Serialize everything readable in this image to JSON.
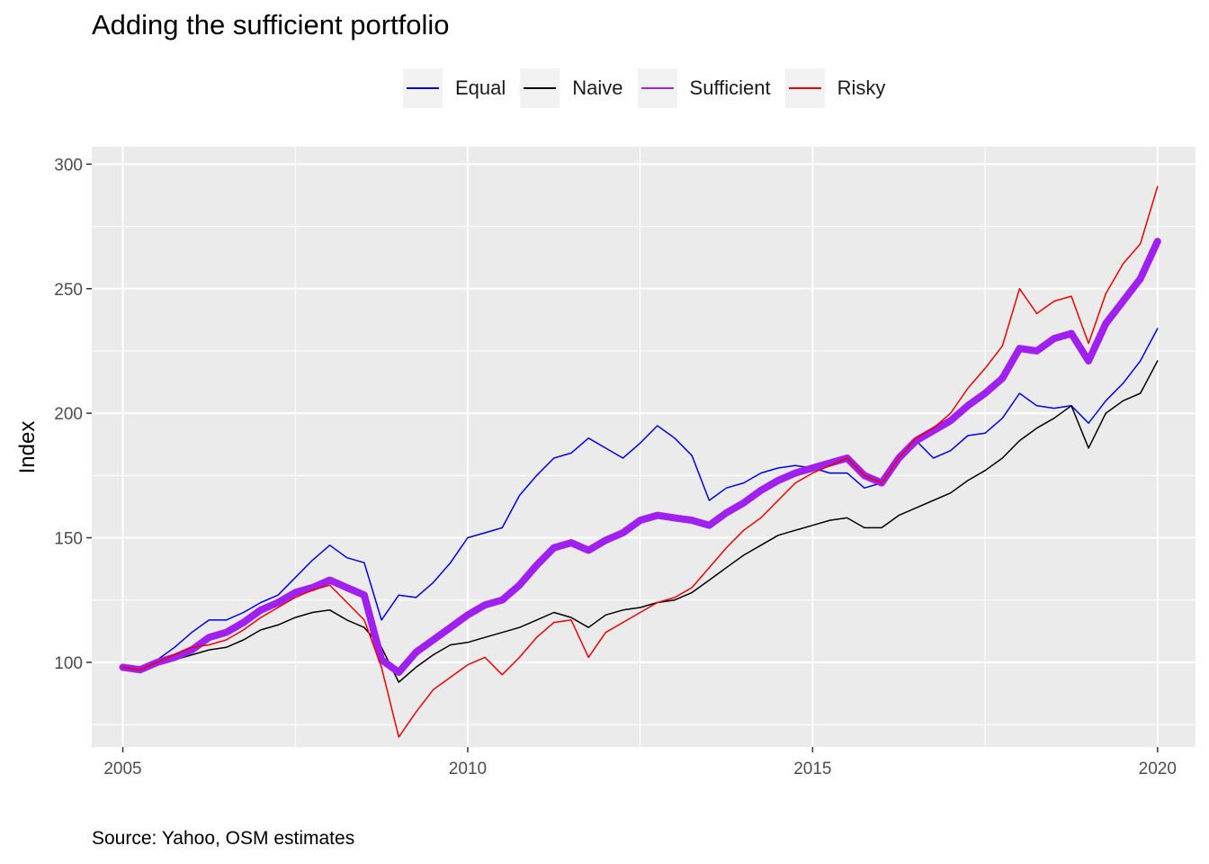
{
  "caption": "Source: Yahoo, OSM estimates",
  "chart_data": {
    "type": "line",
    "title": "Adding the sufficient portfolio",
    "xlabel": "",
    "ylabel": "Index",
    "xlim": [
      2004.55,
      2020.55
    ],
    "ylim": [
      66,
      307
    ],
    "x_ticks": [
      2005,
      2010,
      2015,
      2020
    ],
    "x_tick_labels": [
      "2005",
      "2010",
      "2015",
      "2020"
    ],
    "y_ticks": [
      100,
      150,
      200,
      250,
      300
    ],
    "y_tick_labels": [
      "100",
      "150",
      "200",
      "250",
      "300"
    ],
    "legend_position": "top",
    "series": [
      {
        "name": "Equal",
        "color": "#0000ee",
        "width": 1.5,
        "x": [
          2005.0,
          2005.25,
          2005.5,
          2005.75,
          2006.0,
          2006.25,
          2006.5,
          2006.75,
          2007.0,
          2007.25,
          2007.5,
          2007.75,
          2008.0,
          2008.25,
          2008.5,
          2008.75,
          2009.0,
          2009.25,
          2009.5,
          2009.75,
          2010.0,
          2010.25,
          2010.5,
          2010.75,
          2011.0,
          2011.25,
          2011.5,
          2011.75,
          2012.0,
          2012.25,
          2012.5,
          2012.75,
          2013.0,
          2013.25,
          2013.5,
          2013.75,
          2014.0,
          2014.25,
          2014.5,
          2014.75,
          2015.0,
          2015.25,
          2015.5,
          2015.75,
          2016.0,
          2016.25,
          2016.5,
          2016.75,
          2017.0,
          2017.25,
          2017.5,
          2017.75,
          2018.0,
          2018.25,
          2018.5,
          2018.75,
          2019.0,
          2019.25,
          2019.5,
          2019.75,
          2020.0
        ],
        "y": [
          98,
          98,
          101,
          106,
          112,
          117,
          117,
          120,
          124,
          127,
          134,
          141,
          147,
          142,
          140,
          117,
          127,
          126,
          132,
          140,
          150,
          152,
          154,
          167,
          175,
          182,
          184,
          190,
          186,
          182,
          188,
          195,
          190,
          183,
          165,
          170,
          172,
          176,
          178,
          179,
          178,
          176,
          176,
          170,
          172,
          183,
          189,
          182,
          185,
          191,
          192,
          198,
          208,
          203,
          202,
          203,
          196,
          205,
          212,
          221,
          234
        ]
      },
      {
        "name": "Naive",
        "color": "#000000",
        "width": 1.5,
        "x": [
          2005.0,
          2005.25,
          2005.5,
          2005.75,
          2006.0,
          2006.25,
          2006.5,
          2006.75,
          2007.0,
          2007.25,
          2007.5,
          2007.75,
          2008.0,
          2008.25,
          2008.5,
          2008.75,
          2009.0,
          2009.25,
          2009.5,
          2009.75,
          2010.0,
          2010.25,
          2010.5,
          2010.75,
          2011.0,
          2011.25,
          2011.5,
          2011.75,
          2012.0,
          2012.25,
          2012.5,
          2012.75,
          2013.0,
          2013.25,
          2013.5,
          2013.75,
          2014.0,
          2014.25,
          2014.5,
          2014.75,
          2015.0,
          2015.25,
          2015.5,
          2015.75,
          2016.0,
          2016.25,
          2016.5,
          2016.75,
          2017.0,
          2017.25,
          2017.5,
          2017.75,
          2018.0,
          2018.25,
          2018.5,
          2018.75,
          2019.0,
          2019.25,
          2019.5,
          2019.75,
          2020.0
        ],
        "y": [
          98,
          98,
          100,
          101,
          103,
          105,
          106,
          109,
          113,
          115,
          118,
          120,
          121,
          117,
          114,
          106,
          92,
          98,
          103,
          107,
          108,
          110,
          112,
          114,
          117,
          120,
          118,
          114,
          119,
          121,
          122,
          124,
          125,
          128,
          133,
          138,
          143,
          147,
          151,
          153,
          155,
          157,
          158,
          154,
          154,
          159,
          162,
          165,
          168,
          173,
          177,
          182,
          189,
          194,
          198,
          203,
          186,
          200,
          205,
          208,
          221
        ]
      },
      {
        "name": "Sufficient",
        "color": "#a020f0",
        "width": 8,
        "x": [
          2005.0,
          2005.25,
          2005.5,
          2005.75,
          2006.0,
          2006.25,
          2006.5,
          2006.75,
          2007.0,
          2007.25,
          2007.5,
          2007.75,
          2008.0,
          2008.25,
          2008.5,
          2008.75,
          2009.0,
          2009.25,
          2009.5,
          2009.75,
          2010.0,
          2010.25,
          2010.5,
          2010.75,
          2011.0,
          2011.25,
          2011.5,
          2011.75,
          2012.0,
          2012.25,
          2012.5,
          2012.75,
          2013.0,
          2013.25,
          2013.5,
          2013.75,
          2014.0,
          2014.25,
          2014.5,
          2014.75,
          2015.0,
          2015.25,
          2015.5,
          2015.75,
          2016.0,
          2016.25,
          2016.5,
          2016.75,
          2017.0,
          2017.25,
          2017.5,
          2017.75,
          2018.0,
          2018.25,
          2018.5,
          2018.75,
          2019.0,
          2019.25,
          2019.5,
          2019.75,
          2020.0
        ],
        "y": [
          98,
          97,
          100,
          102,
          105,
          110,
          112,
          116,
          121,
          124,
          128,
          130,
          133,
          130,
          127,
          101,
          96,
          104,
          109,
          114,
          119,
          123,
          125,
          131,
          139,
          146,
          148,
          145,
          149,
          152,
          157,
          159,
          158,
          157,
          155,
          160,
          164,
          169,
          173,
          176,
          178,
          180,
          182,
          175,
          172,
          182,
          189,
          193,
          197,
          203,
          208,
          214,
          226,
          225,
          230,
          232,
          221,
          236,
          245,
          254,
          269
        ]
      },
      {
        "name": "Risky",
        "color": "#ee0000",
        "width": 1.5,
        "x": [
          2005.0,
          2005.25,
          2005.5,
          2005.75,
          2006.0,
          2006.25,
          2006.5,
          2006.75,
          2007.0,
          2007.25,
          2007.5,
          2007.75,
          2008.0,
          2008.25,
          2008.5,
          2008.75,
          2009.0,
          2009.25,
          2009.5,
          2009.75,
          2010.0,
          2010.25,
          2010.5,
          2010.75,
          2011.0,
          2011.25,
          2011.5,
          2011.75,
          2012.0,
          2012.25,
          2012.5,
          2012.75,
          2013.0,
          2013.25,
          2013.5,
          2013.75,
          2014.0,
          2014.25,
          2014.5,
          2014.75,
          2015.0,
          2015.25,
          2015.5,
          2015.75,
          2016.0,
          2016.25,
          2016.5,
          2016.75,
          2017.0,
          2017.25,
          2017.5,
          2017.75,
          2018.0,
          2018.25,
          2018.5,
          2018.75,
          2019.0,
          2019.25,
          2019.5,
          2019.75,
          2020.0
        ],
        "y": [
          98,
          97,
          100,
          103,
          106,
          107,
          109,
          113,
          118,
          122,
          126,
          129,
          131,
          124,
          117,
          98,
          70,
          80,
          89,
          94,
          99,
          102,
          95,
          102,
          110,
          116,
          117,
          102,
          112,
          116,
          120,
          124,
          126,
          130,
          138,
          146,
          153,
          158,
          165,
          172,
          176,
          179,
          182,
          175,
          172,
          182,
          190,
          194,
          200,
          210,
          218,
          227,
          250,
          240,
          245,
          247,
          228,
          248,
          260,
          268,
          291
        ]
      }
    ]
  }
}
